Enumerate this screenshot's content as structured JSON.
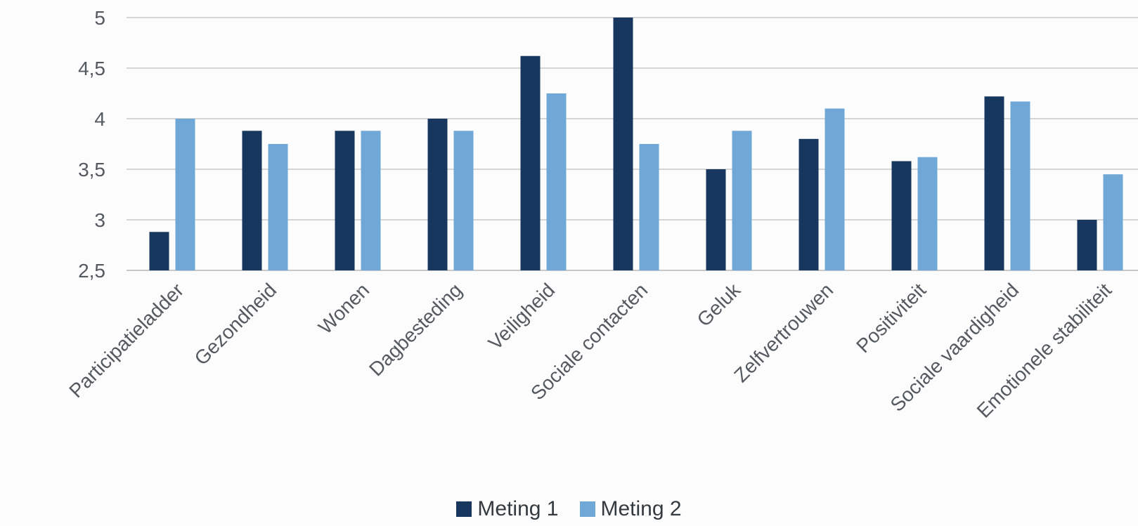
{
  "chart_data": {
    "type": "bar",
    "title": "",
    "xlabel": "",
    "ylabel": "",
    "ylim": [
      2.5,
      5
    ],
    "yticks": [
      "2,5",
      "3",
      "3,5",
      "4",
      "4,5",
      "5"
    ],
    "ytick_values": [
      2.5,
      3,
      3.5,
      4,
      4.5,
      5
    ],
    "grid": true,
    "legend_position": "bottom",
    "categories": [
      "Participatieladder",
      "Gezondheid",
      "Wonen",
      "Dagbesteding",
      "Veiligheid",
      "Sociale contacten",
      "Geluk",
      "Zelfvertrouwen",
      "Positiviteit",
      "Sociale vaardigheid",
      "Emotionele stabiliteit"
    ],
    "series": [
      {
        "name": "Meting 1",
        "color": "#17375e",
        "values": [
          2.88,
          3.88,
          3.88,
          4.0,
          4.62,
          5.0,
          3.5,
          3.8,
          3.58,
          4.22,
          3.0
        ]
      },
      {
        "name": "Meting 2",
        "color": "#6fa8d6",
        "values": [
          4.0,
          3.75,
          3.88,
          3.88,
          4.25,
          3.75,
          3.88,
          4.1,
          3.62,
          4.17,
          3.45
        ]
      }
    ]
  }
}
